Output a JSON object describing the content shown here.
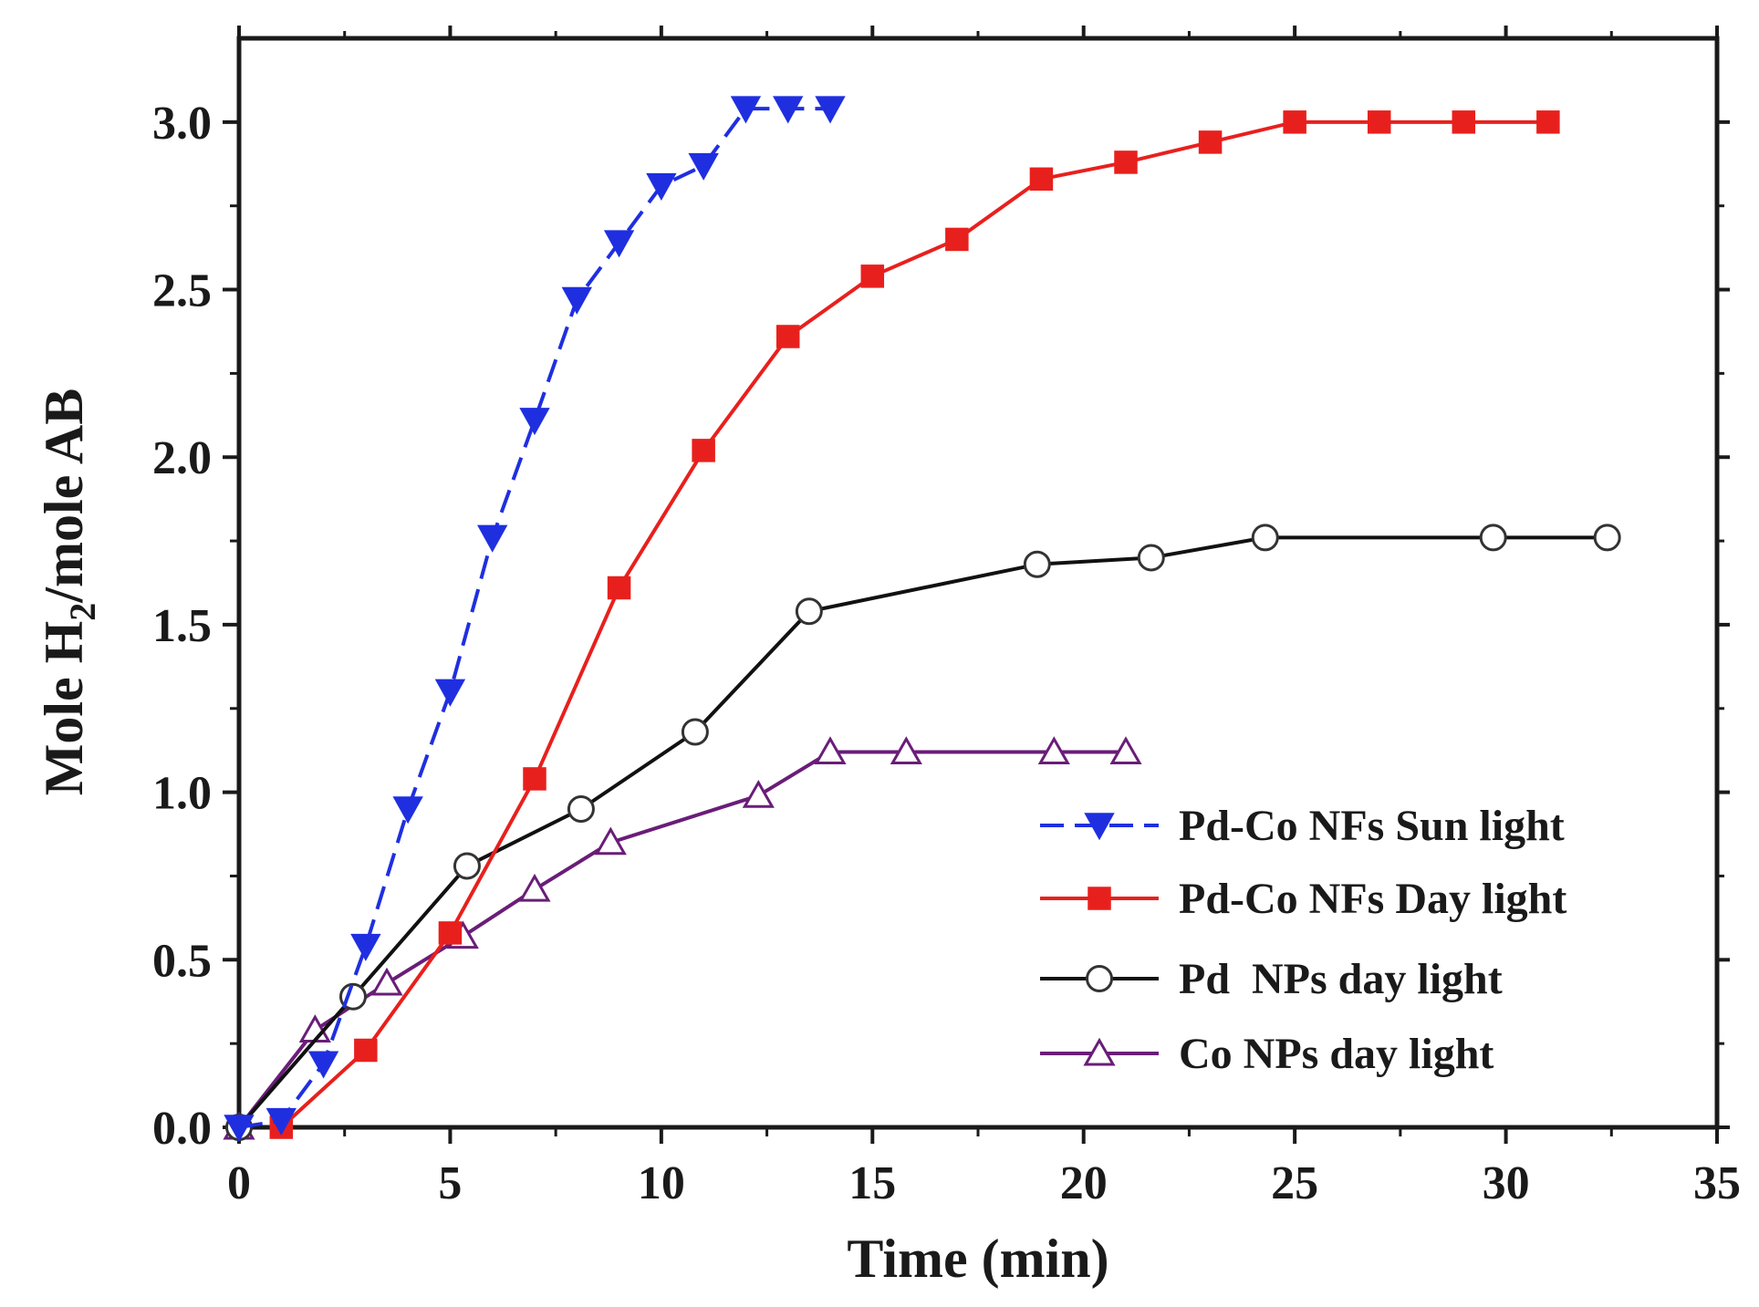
{
  "chart_data": {
    "type": "line",
    "xlabel": "Time (min)",
    "ylabel": "Mole H",
    "ylabel_subscript": "2",
    "ylabel_suffix": "/mole AB",
    "xlim": [
      0,
      35
    ],
    "ylim": [
      0,
      3.25
    ],
    "x_ticks": [
      0,
      5,
      10,
      15,
      20,
      25,
      30,
      35
    ],
    "x_tick_labels": [
      "0",
      "5",
      "10",
      "15",
      "20",
      "25",
      "30",
      "35"
    ],
    "y_ticks": [
      0.0,
      0.5,
      1.0,
      1.5,
      2.0,
      2.5,
      3.0
    ],
    "y_tick_labels": [
      "0.0",
      "0.5",
      "1.0",
      "1.5",
      "2.0",
      "2.5",
      "3.0"
    ],
    "grid": false,
    "legend_position": "bottom-right",
    "series": [
      {
        "name": "Pd-Co NFs Sun light",
        "color": "#1f2fe0",
        "marker": "triangle-down-filled",
        "line_style": "dashed",
        "x": [
          0,
          1,
          2,
          3,
          4,
          5,
          6,
          7,
          8,
          9,
          10,
          11,
          12,
          13,
          14
        ],
        "y": [
          0.0,
          0.02,
          0.19,
          0.54,
          0.95,
          1.3,
          1.76,
          2.11,
          2.47,
          2.64,
          2.81,
          2.87,
          3.04,
          3.04,
          3.04
        ]
      },
      {
        "name": "Pd-Co NFs Day light",
        "color": "#e8201d",
        "marker": "square-filled",
        "line_style": "solid",
        "x": [
          1,
          3,
          5,
          7,
          9,
          11,
          13,
          15,
          17,
          19,
          21,
          23,
          25,
          27,
          29,
          31
        ],
        "y": [
          0.0,
          0.23,
          0.58,
          1.04,
          1.61,
          2.02,
          2.36,
          2.54,
          2.65,
          2.83,
          2.88,
          2.94,
          3.0,
          3.0,
          3.0,
          3.0
        ]
      },
      {
        "name": "Pd  NPs day light",
        "color": "#111111",
        "marker": "circle-open",
        "line_style": "solid",
        "x": [
          0,
          2.7,
          5.4,
          8.1,
          10.8,
          13.5,
          18.9,
          21.6,
          24.3,
          29.7,
          32.4
        ],
        "y": [
          0.0,
          0.39,
          0.78,
          0.95,
          1.18,
          1.54,
          1.68,
          1.7,
          1.76,
          1.76,
          1.76
        ]
      },
      {
        "name": "Co NPs day light",
        "color": "#6a1d78",
        "marker": "triangle-up-open",
        "line_style": "solid",
        "x": [
          0,
          1.8,
          3.5,
          5.3,
          7.0,
          8.8,
          12.3,
          14.0,
          15.8,
          19.3,
          21.0
        ],
        "y": [
          0.0,
          0.29,
          0.43,
          0.57,
          0.71,
          0.85,
          0.99,
          1.12,
          1.12,
          1.12,
          1.12
        ]
      }
    ]
  }
}
